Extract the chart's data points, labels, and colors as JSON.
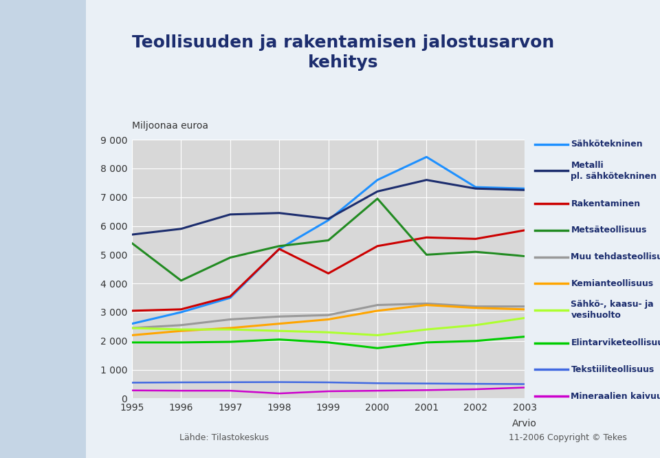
{
  "title": "Teollisuuden ja rakentamisen jalostusarvon\nkehitys",
  "ylabel": "Miljoonaa euroa",
  "years": [
    1995,
    1996,
    1997,
    1998,
    1999,
    2000,
    2001,
    2002,
    2003
  ],
  "series": [
    {
      "label": "Sähkötekninen",
      "color": "#1E90FF",
      "linewidth": 2.2,
      "values": [
        2600,
        3000,
        3500,
        5200,
        6200,
        7600,
        8400,
        7350,
        7300
      ]
    },
    {
      "label": "Metalli pl. sähkötekninen",
      "color": "#1C2D6E",
      "linewidth": 2.2,
      "values": [
        5700,
        5900,
        6400,
        6450,
        6250,
        7200,
        7600,
        7300,
        7250
      ]
    },
    {
      "label": "Rakentaminen",
      "color": "#CC0000",
      "linewidth": 2.2,
      "values": [
        3050,
        3100,
        3550,
        5200,
        4350,
        5300,
        5600,
        5550,
        5850
      ]
    },
    {
      "label": "Metsäteollisuus",
      "color": "#228B22",
      "linewidth": 2.2,
      "values": [
        5400,
        4100,
        4900,
        5300,
        5500,
        6950,
        5000,
        5100,
        4950
      ]
    },
    {
      "label": "Muu tehdasteollisuus",
      "color": "#999999",
      "linewidth": 2.2,
      "values": [
        2450,
        2550,
        2750,
        2850,
        2900,
        3250,
        3300,
        3200,
        3200
      ]
    },
    {
      "label": "Kemianteollisuus",
      "color": "#FFA500",
      "linewidth": 2.2,
      "values": [
        2200,
        2350,
        2450,
        2600,
        2750,
        3050,
        3250,
        3150,
        3100
      ]
    },
    {
      "label": "Sähkö-, kaasu- ja\nvesihuolto",
      "color": "#ADFF2F",
      "linewidth": 2.2,
      "values": [
        2450,
        2400,
        2400,
        2350,
        2300,
        2200,
        2400,
        2550,
        2800
      ]
    },
    {
      "label": "Elintarviketeollisuus",
      "color": "#00CC00",
      "linewidth": 2.2,
      "values": [
        1950,
        1950,
        1970,
        2050,
        1950,
        1750,
        1950,
        2000,
        2150
      ]
    },
    {
      "label": "Tekstiiliteollisuus",
      "color": "#4169E1",
      "linewidth": 1.8,
      "values": [
        550,
        560,
        565,
        570,
        560,
        530,
        520,
        510,
        500
      ]
    },
    {
      "label": "Mineraalien kaivuu",
      "color": "#CC00CC",
      "linewidth": 1.8,
      "values": [
        280,
        270,
        270,
        175,
        250,
        270,
        290,
        320,
        380
      ]
    }
  ],
  "ylim": [
    0,
    9000
  ],
  "yticks": [
    0,
    1000,
    2000,
    3000,
    4000,
    5000,
    6000,
    7000,
    8000,
    9000
  ],
  "ytick_labels": [
    "0",
    "1 000",
    "2 000",
    "3 000",
    "4 000",
    "5 000",
    "6 000",
    "7 000",
    "8 000",
    "9 000"
  ],
  "background_color": "#EAF0F6",
  "plot_bg_color": "#D8D8D8",
  "title_color": "#1C2D6E",
  "legend_label_color": "#1C2D6E",
  "axis_label_color": "#333333",
  "source_text": "Lähde: Tilastokeskus",
  "copyright_text": "11-2006 Copyright © Tekes",
  "left_panel_color": "#C5D5E5"
}
